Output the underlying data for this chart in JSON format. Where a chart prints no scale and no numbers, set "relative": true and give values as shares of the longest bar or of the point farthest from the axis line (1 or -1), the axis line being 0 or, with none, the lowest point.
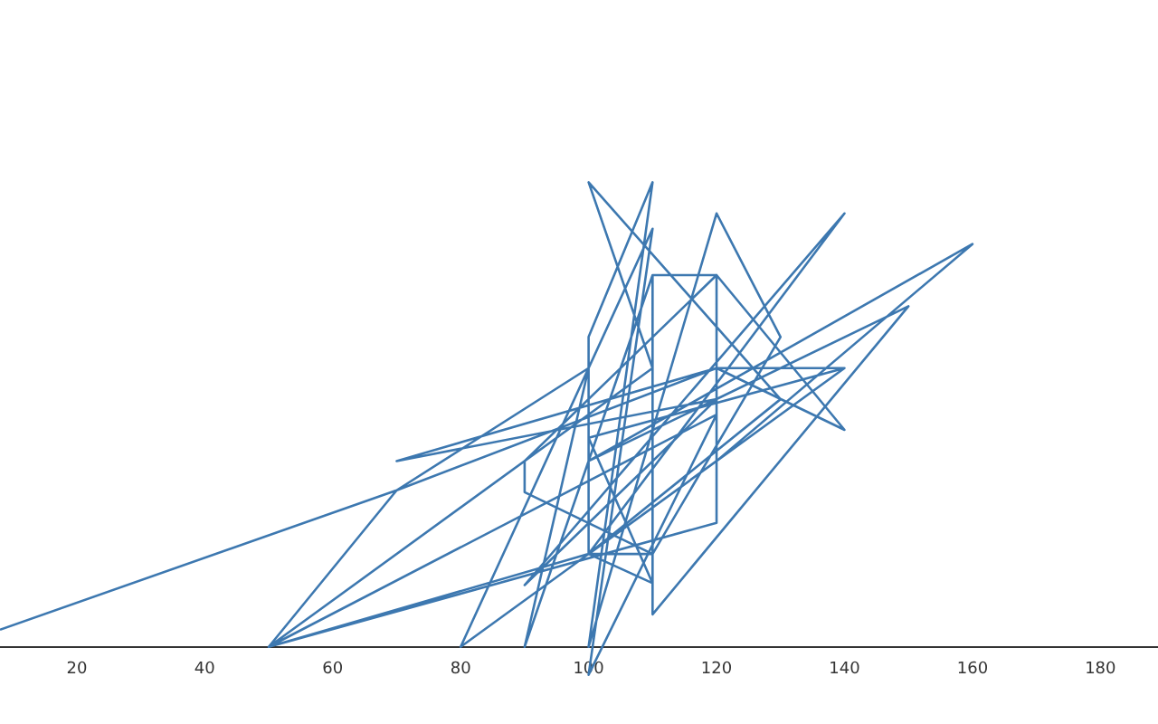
{
  "chart_data": {
    "type": "line",
    "relative": true,
    "color": "#3d78b0",
    "xlim": [
      8,
      189
    ],
    "xticks": [
      20,
      40,
      60,
      80,
      100,
      120,
      140,
      160,
      180
    ],
    "x": [
      8,
      70,
      120,
      140,
      120,
      110,
      110,
      100,
      100,
      110,
      100,
      120,
      130,
      110,
      90,
      90,
      120,
      120,
      50,
      110,
      100,
      130,
      100,
      140,
      90,
      120,
      70,
      120,
      140,
      100,
      50,
      120,
      100,
      110,
      80,
      120,
      160,
      100,
      150,
      110,
      110,
      90,
      100,
      70,
      50,
      100,
      110,
      100,
      140
    ],
    "values": [
      0.037,
      0.337,
      0.6,
      0.467,
      0.8,
      0.8,
      0.2,
      0.2,
      0.667,
      1.0,
      0.0,
      0.933,
      0.667,
      0.2,
      0.333,
      0.4,
      0.8,
      0.267,
      0,
      0.6,
      1.0,
      0.533,
      0.2,
      0.933,
      0.133,
      0.533,
      0.4,
      0.6,
      0.6,
      0.2,
      0,
      0.5,
      -0.06,
      0.9,
      0,
      0.4,
      0.867,
      0.4,
      0.733,
      0.07,
      0.8,
      0,
      0.6,
      0.337,
      0,
      0.2,
      0.137,
      0.45,
      0.6
    ]
  }
}
